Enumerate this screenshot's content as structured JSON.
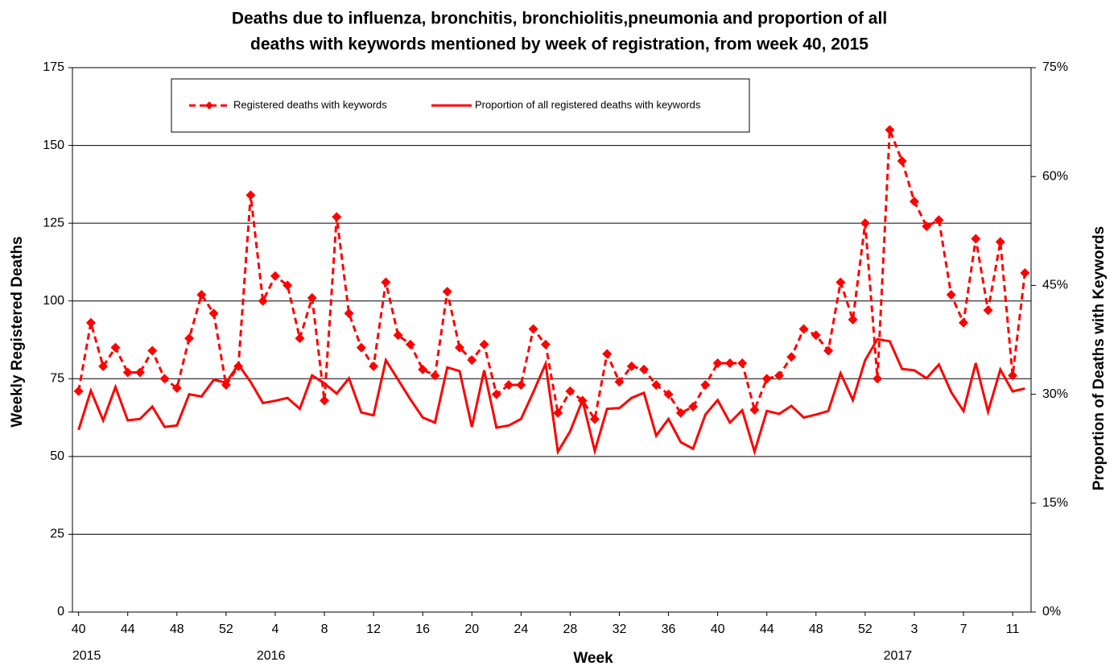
{
  "chart_data": {
    "type": "line",
    "title": [
      "Deaths due to influenza, bronchitis, bronchiolitis,pneumonia and proportion of all",
      "deaths with keywords mentioned by week of registration, from week 40, 2015"
    ],
    "x_label": "Week",
    "y_label": "Weekly Registered Deaths",
    "y2_label": "Proportion of Deaths with Keywords",
    "categories": [
      "40",
      null,
      null,
      null,
      "44",
      null,
      null,
      null,
      "48",
      null,
      null,
      null,
      "52",
      null,
      null,
      null,
      "4",
      null,
      null,
      null,
      "8",
      null,
      null,
      null,
      "12",
      null,
      null,
      null,
      "16",
      null,
      null,
      null,
      "20",
      null,
      null,
      null,
      "24",
      null,
      null,
      null,
      "28",
      null,
      null,
      null,
      "32",
      null,
      null,
      null,
      "36",
      null,
      null,
      null,
      "40",
      null,
      null,
      null,
      "44",
      null,
      null,
      null,
      "48",
      null,
      null,
      null,
      "52",
      null,
      null,
      null,
      "3",
      null,
      null,
      null,
      "7",
      null,
      null,
      null,
      "11",
      null
    ],
    "x_group_labels": [
      "2015",
      null,
      null,
      null,
      null,
      null,
      null,
      null,
      null,
      null,
      null,
      null,
      null,
      null,
      null,
      "2016",
      null,
      null,
      null,
      null,
      null,
      null,
      null,
      null,
      null,
      null,
      null,
      null,
      null,
      null,
      null,
      null,
      null,
      null,
      null,
      null,
      null,
      null,
      null,
      null,
      null,
      null,
      null,
      null,
      null,
      null,
      null,
      null,
      null,
      null,
      null,
      null,
      null,
      null,
      null,
      null,
      null,
      null,
      null,
      null,
      null,
      null,
      null,
      null,
      null,
      null,
      "2017",
      null,
      null,
      null,
      null,
      null,
      null,
      null,
      null,
      null,
      null,
      null
    ],
    "series": [
      {
        "name": "Registered deaths with keywords",
        "color": "#ff0000",
        "style": "dashed",
        "marker": "diamond",
        "values": [
          71,
          93,
          79,
          85,
          77,
          77,
          84,
          75,
          72,
          88,
          102,
          96,
          73,
          79,
          134,
          100,
          108,
          105,
          88,
          101,
          68,
          127,
          96,
          85,
          79,
          106,
          89,
          86,
          78,
          76,
          103,
          85,
          81,
          86,
          70,
          73,
          73,
          91,
          86,
          64,
          71,
          68,
          62,
          83,
          74,
          79,
          78,
          73,
          70,
          64,
          66,
          73,
          80,
          80,
          80,
          65,
          75,
          76,
          82,
          91,
          89,
          84,
          106,
          94,
          125,
          75,
          155,
          145,
          132,
          124,
          126,
          102,
          93,
          120,
          97,
          119,
          76,
          109
        ]
      },
      {
        "name": "Proportion of all registered deaths with keywords",
        "color": "#ff0000",
        "style": "solid",
        "axis": "y2",
        "values": [
          25.1,
          30.5,
          26.4,
          31.0,
          26.4,
          26.6,
          28.3,
          25.5,
          25.7,
          30.0,
          29.7,
          32.0,
          31.6,
          34.1,
          31.7,
          28.8,
          29.1,
          29.5,
          28.0,
          32.6,
          31.5,
          30.1,
          32.2,
          27.5,
          27.1,
          34.7,
          32.0,
          29.3,
          26.8,
          26.1,
          33.7,
          33.2,
          25.5,
          33.3,
          25.4,
          25.7,
          26.6,
          30.3,
          34.2,
          22.1,
          24.9,
          29.2,
          22.2,
          28.0,
          28.1,
          29.5,
          30.2,
          24.3,
          26.6,
          23.4,
          22.5,
          27.2,
          29.2,
          26.1,
          27.8,
          22.1,
          27.7,
          27.3,
          28.4,
          26.8,
          27.2,
          27.7,
          32.9,
          29.2,
          34.7,
          37.6,
          37.3,
          33.5,
          33.3,
          32.2,
          34.1,
          30.3,
          27.7,
          34.3,
          27.6,
          33.4,
          30.4,
          30.8
        ]
      }
    ],
    "ylim": [
      0,
      175
    ],
    "yticks": [
      0,
      25,
      50,
      75,
      100,
      125,
      150,
      175
    ],
    "y2lim": [
      0,
      75
    ],
    "y2ticks": [
      {
        "value": 0,
        "label": "0%"
      },
      {
        "value": 15,
        "label": "15%"
      },
      {
        "value": 30,
        "label": "30%"
      },
      {
        "value": 45,
        "label": "45%"
      },
      {
        "value": 60,
        "label": "60%"
      },
      {
        "value": 75,
        "label": "75%"
      }
    ],
    "grid": true,
    "legend": "top-left"
  }
}
